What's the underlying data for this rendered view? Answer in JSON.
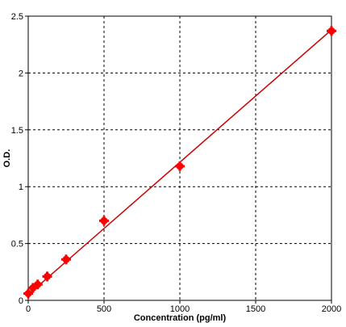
{
  "chart_data": {
    "type": "scatter",
    "xlabel": "Concentration (pg/ml)",
    "ylabel": "O.D.",
    "xlim": [
      0,
      2000
    ],
    "ylim": [
      0,
      2.5
    ],
    "xticks": [
      0,
      500,
      1000,
      1500,
      2000
    ],
    "yticks": [
      0,
      0.5,
      1,
      1.5,
      2,
      2.5
    ],
    "xtick_labels": [
      "0",
      "500",
      "1000",
      "1500",
      "2000"
    ],
    "ytick_labels": [
      "0",
      "0.5",
      "1",
      "1.5",
      "2",
      "2.5"
    ],
    "grid": true,
    "series": [
      {
        "marker_color": "#ff0000",
        "line_color": "#cc0000",
        "points": [
          {
            "x": 0,
            "y": 0.06
          },
          {
            "x": 31.25,
            "y": 0.11
          },
          {
            "x": 62.5,
            "y": 0.14
          },
          {
            "x": 125,
            "y": 0.21
          },
          {
            "x": 250,
            "y": 0.36
          },
          {
            "x": 500,
            "y": 0.7
          },
          {
            "x": 1000,
            "y": 1.18
          },
          {
            "x": 2000,
            "y": 2.37
          }
        ],
        "fit_line": [
          {
            "x": 0,
            "y": 0.05
          },
          {
            "x": 2000,
            "y": 2.38
          }
        ]
      }
    ]
  }
}
